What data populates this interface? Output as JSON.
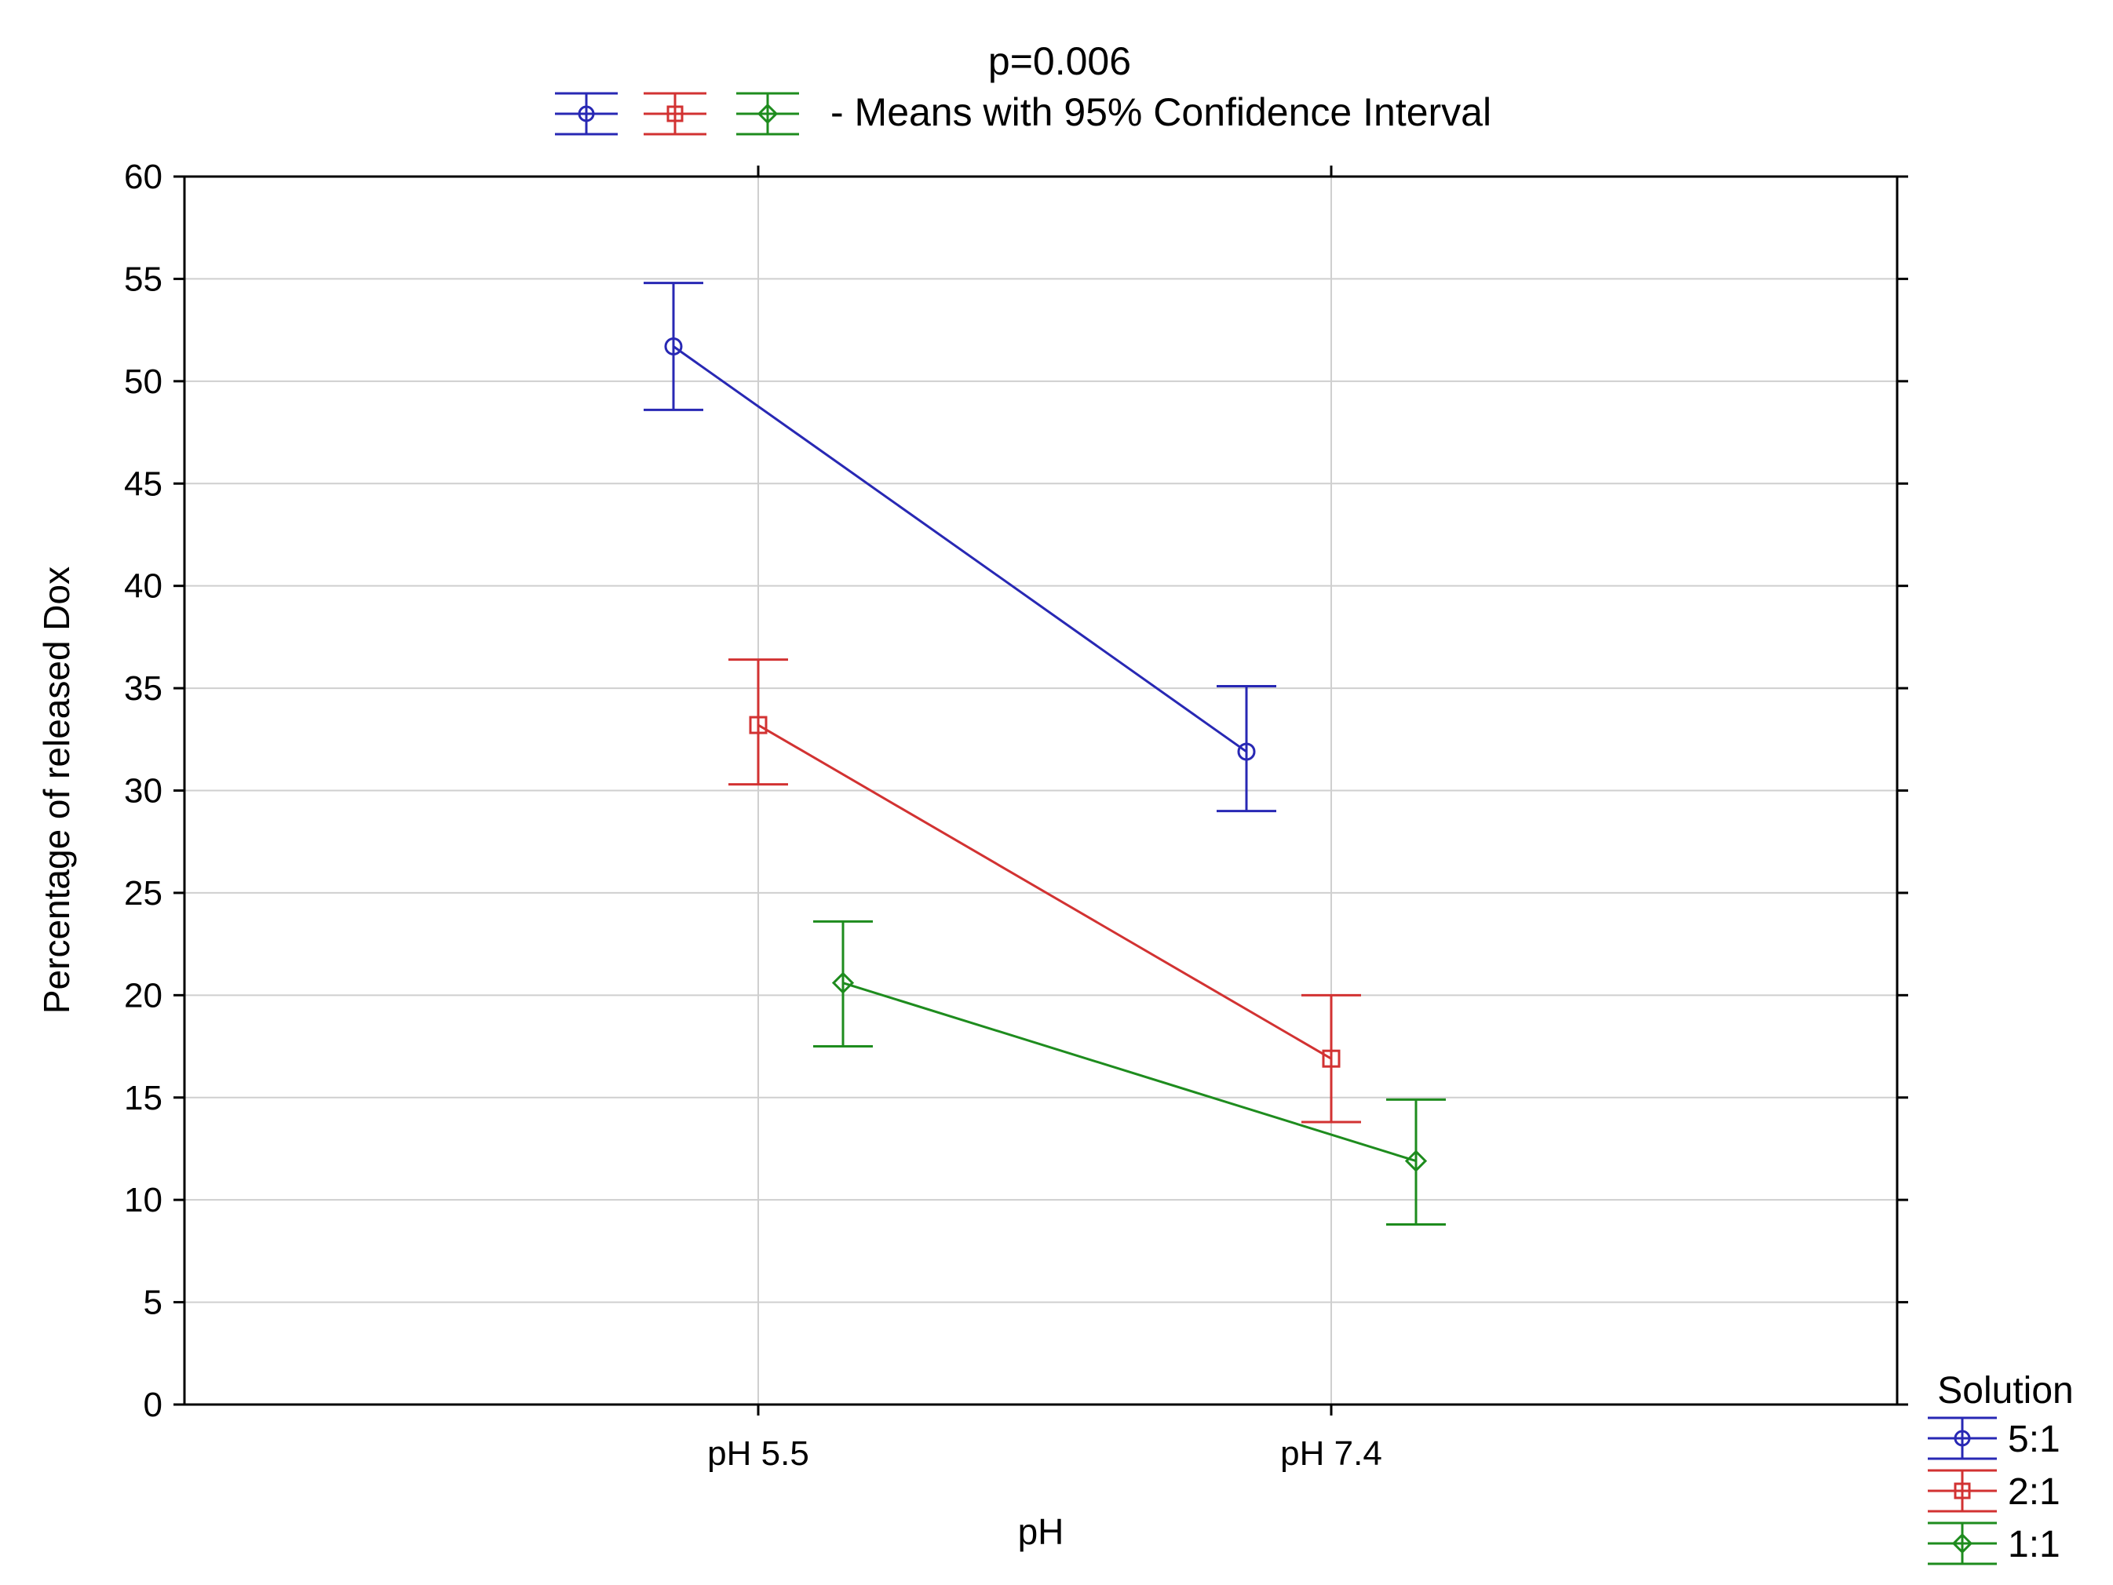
{
  "chart_data": {
    "type": "line",
    "title": "p=0.006",
    "subtitle": "- Means with 95% Confidence Interval",
    "xlabel": "pH",
    "ylabel": "Percentage of released Dox",
    "categories": [
      "pH 5.5",
      "pH 7.4"
    ],
    "ylim": [
      0,
      60
    ],
    "yticks": [
      0,
      5,
      10,
      15,
      20,
      25,
      30,
      35,
      40,
      45,
      50,
      55,
      60
    ],
    "grid": true,
    "legend": {
      "title": "Solution",
      "position": "bottom-right"
    },
    "series": [
      {
        "name": "5:1",
        "color": "#2828b4",
        "marker": "circle",
        "values": [
          51.7,
          31.9
        ],
        "ci_low": [
          48.6,
          29.0
        ],
        "ci_high": [
          54.8,
          35.1
        ]
      },
      {
        "name": "2:1",
        "color": "#d23232",
        "marker": "square",
        "values": [
          33.2,
          16.9
        ],
        "ci_low": [
          30.3,
          13.8
        ],
        "ci_high": [
          36.4,
          20.0
        ]
      },
      {
        "name": "1:1",
        "color": "#1e8c1e",
        "marker": "diamond",
        "values": [
          20.6,
          11.9
        ],
        "ci_low": [
          17.5,
          8.8
        ],
        "ci_high": [
          23.6,
          14.9
        ]
      }
    ]
  }
}
